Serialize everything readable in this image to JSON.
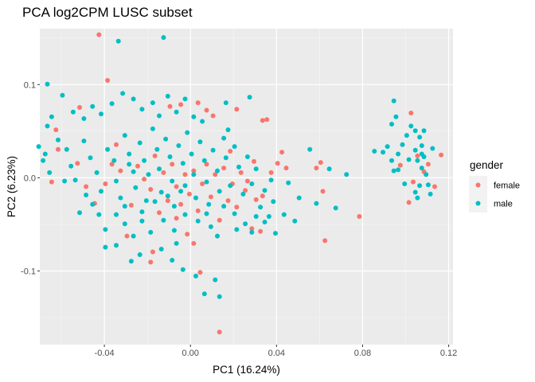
{
  "chart_data": {
    "type": "scatter",
    "title": "PCA log2CPM LUSC subset",
    "xlabel": "PC1 (16.24%)",
    "ylabel": "PC2 (6.23%)",
    "xlim": [
      -0.07,
      0.122
    ],
    "ylim": [
      -0.179,
      0.16
    ],
    "xticks": [
      -0.04,
      0.0,
      0.04,
      0.08,
      0.12
    ],
    "xtick_labels": [
      "-0.04",
      "0.00",
      "0.04",
      "0.08",
      "0.12"
    ],
    "yticks": [
      -0.1,
      0.0,
      0.1
    ],
    "ytick_labels": [
      "-0.1",
      "0.0",
      "0.1"
    ],
    "grid": true,
    "legend_position": "right",
    "legend": {
      "title": "gender",
      "entries": [
        {
          "name": "female",
          "color": "#F8766D"
        },
        {
          "name": "male",
          "color": "#00BFC4"
        }
      ]
    },
    "series": [
      {
        "name": "female",
        "color": "#F8766D",
        "points": [
          [
            -0.0425,
            0.1535
          ],
          [
            -0.0385,
            0.1045
          ],
          [
            -0.0095,
            0.0765
          ],
          [
            -0.0045,
            0.0785
          ],
          [
            0.0035,
            0.0805
          ],
          [
            0.0075,
            0.0725
          ],
          [
            0.0105,
            0.0665
          ],
          [
            0.0215,
            0.0735
          ],
          [
            0.0335,
            0.0615
          ],
          [
            0.0355,
            0.0625
          ],
          [
            -0.0515,
            0.0755
          ],
          [
            -0.0615,
            0.0305
          ],
          [
            -0.0625,
            0.0515
          ],
          [
            -0.0645,
            -0.0045
          ],
          [
            -0.0525,
            0.0155
          ],
          [
            -0.0485,
            -0.0095
          ],
          [
            -0.0445,
            -0.0275
          ],
          [
            -0.0395,
            -0.0065
          ],
          [
            -0.0345,
            0.0355
          ],
          [
            -0.0365,
            0.0145
          ],
          [
            -0.0325,
            0.0075
          ],
          [
            -0.0275,
            -0.0295
          ],
          [
            -0.0245,
            0.0125
          ],
          [
            -0.0215,
            -0.0015
          ],
          [
            -0.0185,
            -0.0125
          ],
          [
            -0.0165,
            0.0235
          ],
          [
            -0.0145,
            -0.0375
          ],
          [
            -0.0125,
            0.0055
          ],
          [
            -0.0105,
            -0.0245
          ],
          [
            -0.0085,
            0.0145
          ],
          [
            -0.0065,
            -0.0095
          ],
          [
            -0.0045,
            -0.0285
          ],
          [
            -0.0025,
            0.0035
          ],
          [
            -0.0005,
            -0.0175
          ],
          [
            0.0015,
            0.0075
          ],
          [
            0.0035,
            -0.0355
          ],
          [
            0.0055,
            -0.0065
          ],
          [
            0.0075,
            0.0145
          ],
          [
            0.0095,
            -0.0205
          ],
          [
            0.0115,
            0.0035
          ],
          [
            0.0135,
            -0.0455
          ],
          [
            0.0155,
            0.0105
          ],
          [
            0.0175,
            -0.0245
          ],
          [
            0.0195,
            -0.0065
          ],
          [
            0.0215,
            -0.0315
          ],
          [
            0.0235,
            0.0055
          ],
          [
            0.0255,
            -0.0135
          ],
          [
            0.0285,
            -0.0545
          ],
          [
            0.0305,
            -0.0235
          ],
          [
            0.0325,
            -0.0575
          ],
          [
            0.0295,
            0.0175
          ],
          [
            0.0265,
            -0.0035
          ],
          [
            -0.0295,
            -0.0625
          ],
          [
            -0.0175,
            -0.0795
          ],
          [
            -0.0185,
            -0.0905
          ],
          [
            -0.0065,
            -0.0435
          ],
          [
            -0.0015,
            -0.0605
          ],
          [
            0.0045,
            -0.1015
          ],
          [
            0.0015,
            -0.0705
          ],
          [
            0.0135,
            -0.1655
          ],
          [
            0.0405,
            0.0155
          ],
          [
            0.0445,
            0.0105
          ],
          [
            0.0585,
            0.0105
          ],
          [
            0.0605,
            0.0165
          ],
          [
            0.0625,
            -0.0675
          ],
          [
            0.0615,
            -0.0145
          ],
          [
            0.0785,
            -0.0415
          ],
          [
            0.0375,
            0.0055
          ],
          [
            0.0335,
            -0.0195
          ],
          [
            0.0185,
            0.0285
          ],
          [
            0.0425,
            0.0275
          ],
          [
            0.1025,
            0.0695
          ],
          [
            0.1015,
            -0.0265
          ],
          [
            0.1055,
            0.0235
          ],
          [
            0.1085,
            0.0065
          ],
          [
            0.1105,
            0.0145
          ],
          [
            0.1135,
            -0.0095
          ],
          [
            0.1165,
            0.0245
          ],
          [
            0.1035,
            -0.0045
          ],
          [
            0.0975,
            0.0135
          ]
        ]
      },
      {
        "name": "male",
        "color": "#00BFC4",
        "points": [
          [
            -0.0335,
            0.1465
          ],
          [
            -0.0125,
            0.1505
          ],
          [
            -0.0665,
            0.1005
          ],
          [
            -0.0595,
            0.0885
          ],
          [
            -0.0545,
            0.0705
          ],
          [
            -0.0495,
            0.0635
          ],
          [
            -0.0455,
            0.0765
          ],
          [
            -0.0415,
            0.0685
          ],
          [
            -0.0365,
            0.0795
          ],
          [
            -0.0315,
            0.0905
          ],
          [
            -0.0265,
            0.0845
          ],
          [
            -0.0225,
            0.0735
          ],
          [
            -0.0175,
            0.0805
          ],
          [
            -0.0145,
            0.0665
          ],
          [
            -0.0105,
            0.0875
          ],
          [
            -0.0065,
            0.0705
          ],
          [
            -0.0025,
            0.0845
          ],
          [
            0.0015,
            0.0655
          ],
          [
            0.0055,
            0.0605
          ],
          [
            0.0165,
            0.0805
          ],
          [
            0.0275,
            0.0865
          ],
          [
            0.0175,
            0.0515
          ],
          [
            -0.0645,
            0.0655
          ],
          [
            -0.0665,
            0.0555
          ],
          [
            -0.0705,
            0.0335
          ],
          [
            -0.0675,
            0.0255
          ],
          [
            -0.0685,
            0.0185
          ],
          [
            -0.0655,
            0.0055
          ],
          [
            -0.0615,
            0.0405
          ],
          [
            -0.0575,
            0.0305
          ],
          [
            -0.0555,
            0.0125
          ],
          [
            -0.0535,
            -0.0025
          ],
          [
            -0.0585,
            -0.0035
          ],
          [
            -0.0495,
            0.0395
          ],
          [
            -0.0465,
            0.0215
          ],
          [
            -0.0435,
            0.0055
          ],
          [
            -0.0415,
            -0.0145
          ],
          [
            -0.0385,
            0.0305
          ],
          [
            -0.0355,
            0.0185
          ],
          [
            -0.0345,
            -0.0035
          ],
          [
            -0.0325,
            -0.0215
          ],
          [
            -0.0305,
            0.0455
          ],
          [
            -0.0285,
            0.0255
          ],
          [
            -0.0265,
            0.0065
          ],
          [
            -0.0255,
            -0.0105
          ],
          [
            -0.0235,
            0.0375
          ],
          [
            -0.0215,
            0.0185
          ],
          [
            -0.0205,
            -0.0245
          ],
          [
            -0.0195,
            0.0035
          ],
          [
            -0.0175,
            0.0525
          ],
          [
            -0.0155,
            0.0305
          ],
          [
            -0.0145,
            0.0095
          ],
          [
            -0.0135,
            -0.0155
          ],
          [
            -0.0115,
            0.0415
          ],
          [
            -0.0095,
            0.0225
          ],
          [
            -0.0085,
            -0.0035
          ],
          [
            -0.0075,
            -0.0305
          ],
          [
            -0.0055,
            0.0345
          ],
          [
            -0.0035,
            0.0155
          ],
          [
            -0.0025,
            -0.0085
          ],
          [
            -0.0015,
            0.0485
          ],
          [
            0.0005,
            0.0255
          ],
          [
            0.0015,
            0.0035
          ],
          [
            0.0025,
            -0.0215
          ],
          [
            0.0045,
            0.0385
          ],
          [
            0.0065,
            0.0185
          ],
          [
            0.0075,
            -0.0045
          ],
          [
            0.0085,
            -0.0285
          ],
          [
            0.0105,
            0.0295
          ],
          [
            0.0125,
            0.0075
          ],
          [
            0.0135,
            -0.0145
          ],
          [
            0.0155,
            0.0425
          ],
          [
            0.0165,
            0.0215
          ],
          [
            0.0185,
            -0.0085
          ],
          [
            0.0205,
            0.0335
          ],
          [
            0.0225,
            0.0115
          ],
          [
            0.0245,
            -0.0175
          ],
          [
            0.0265,
            0.0225
          ],
          [
            0.0285,
            -0.0065
          ],
          [
            0.0305,
            0.0095
          ],
          [
            0.0325,
            -0.0315
          ],
          [
            0.0345,
            -0.0135
          ],
          [
            0.0365,
            -0.0415
          ],
          [
            0.0385,
            -0.0255
          ],
          [
            0.0395,
            -0.0595
          ],
          [
            0.0345,
            -0.0475
          ],
          [
            0.0305,
            -0.0415
          ],
          [
            0.0255,
            -0.0495
          ],
          [
            0.0205,
            -0.0385
          ],
          [
            0.0155,
            -0.0305
          ],
          [
            0.0095,
            -0.0525
          ],
          [
            0.0075,
            -0.0385
          ],
          [
            0.0035,
            -0.0465
          ],
          [
            -0.0025,
            -0.0395
          ],
          [
            -0.0075,
            -0.0565
          ],
          [
            -0.0125,
            -0.0455
          ],
          [
            -0.0185,
            -0.0585
          ],
          [
            -0.0225,
            -0.0465
          ],
          [
            -0.0265,
            -0.0625
          ],
          [
            -0.0305,
            -0.0495
          ],
          [
            -0.0345,
            -0.0725
          ],
          [
            -0.0395,
            -0.0555
          ],
          [
            -0.0425,
            -0.0395
          ],
          [
            -0.0455,
            -0.0285
          ],
          [
            -0.0485,
            -0.0185
          ],
          [
            -0.0515,
            -0.0375
          ],
          [
            -0.0395,
            -0.0745
          ],
          [
            -0.0275,
            -0.0895
          ],
          [
            -0.0235,
            -0.0825
          ],
          [
            -0.0135,
            -0.0765
          ],
          [
            -0.0085,
            -0.0885
          ],
          [
            -0.0035,
            -0.0985
          ],
          [
            0.0025,
            -0.1055
          ],
          [
            0.0065,
            -0.1245
          ],
          [
            0.0115,
            -0.1095
          ],
          [
            0.0135,
            -0.1275
          ],
          [
            -0.0065,
            -0.0705
          ],
          [
            0.0125,
            -0.0625
          ],
          [
            0.0215,
            -0.0555
          ],
          [
            0.0285,
            -0.0585
          ],
          [
            0.0435,
            -0.0395
          ],
          [
            0.0485,
            -0.0465
          ],
          [
            0.0375,
            -0.0025
          ],
          [
            0.0455,
            -0.0055
          ],
          [
            0.0505,
            -0.0215
          ],
          [
            0.0555,
            0.0305
          ],
          [
            0.0585,
            -0.0275
          ],
          [
            0.0645,
            0.0095
          ],
          [
            0.0675,
            -0.0325
          ],
          [
            0.0725,
            0.0035
          ],
          [
            0.0855,
            0.0285
          ],
          [
            0.0945,
            0.0825
          ],
          [
            0.0955,
            0.0655
          ],
          [
            0.0935,
            0.0575
          ],
          [
            0.0915,
            0.0335
          ],
          [
            0.0935,
            0.0185
          ],
          [
            0.0945,
            0.0075
          ],
          [
            0.0965,
            0.0255
          ],
          [
            0.0985,
            0.0355
          ],
          [
            0.1005,
            0.0455
          ],
          [
            0.1025,
            0.0555
          ],
          [
            0.1045,
            0.0505
          ],
          [
            0.1065,
            0.0435
          ],
          [
            0.1075,
            0.0345
          ],
          [
            0.1045,
            0.0295
          ],
          [
            0.1055,
            0.0185
          ],
          [
            0.1075,
            0.0105
          ],
          [
            0.1085,
            0.0225
          ],
          [
            0.1095,
            0.0035
          ],
          [
            0.1105,
            -0.0075
          ],
          [
            0.1115,
            -0.0175
          ],
          [
            0.1065,
            -0.0085
          ],
          [
            0.1045,
            -0.0155
          ],
          [
            0.1125,
            0.0315
          ],
          [
            0.1085,
            0.0505
          ],
          [
            0.1015,
            0.0195
          ],
          [
            0.0995,
            -0.0065
          ],
          [
            0.0965,
            0.0085
          ],
          [
            0.1055,
            -0.0215
          ],
          [
            0.1075,
            0.0255
          ],
          [
            0.0895,
            0.0275
          ],
          [
            -0.0285,
            0.0145
          ],
          [
            -0.0305,
            -0.0305
          ],
          [
            -0.0345,
            -0.0395
          ],
          [
            -0.0225,
            -0.0365
          ],
          [
            -0.0165,
            -0.0255
          ],
          [
            -0.0105,
            -0.0195
          ],
          [
            -0.0045,
            -0.0145
          ]
        ]
      }
    ]
  }
}
